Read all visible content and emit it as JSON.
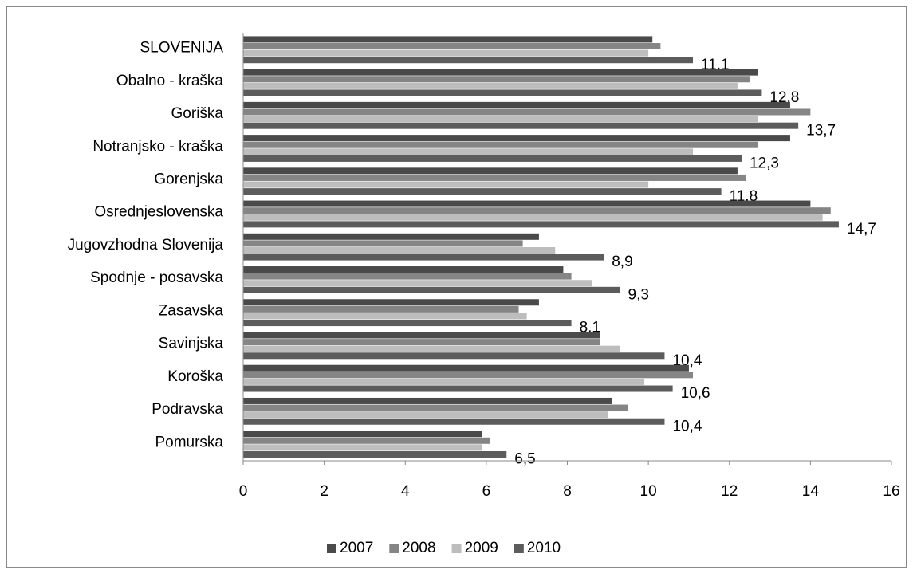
{
  "chart_data": {
    "type": "bar",
    "orientation": "horizontal",
    "categories": [
      "SLOVENIJA",
      "Obalno - kraška",
      "Goriška",
      "Notranjsko - kraška",
      "Gorenjska",
      "Osrednjeslovenska",
      "Jugovzhodna Slovenija",
      "Spodnje - posavska",
      "Zasavska",
      "Savinjska",
      "Koroška",
      "Podravska",
      "Pomurska"
    ],
    "series": [
      {
        "name": "2007",
        "color": "#4a4a4a",
        "values": [
          10.1,
          12.7,
          13.5,
          13.5,
          12.2,
          14.0,
          7.3,
          7.9,
          7.3,
          8.8,
          11.0,
          9.1,
          5.9
        ]
      },
      {
        "name": "2008",
        "color": "#858585",
        "values": [
          10.3,
          12.5,
          14.0,
          12.7,
          12.4,
          14.5,
          6.9,
          8.1,
          6.8,
          8.8,
          11.1,
          9.5,
          6.1
        ]
      },
      {
        "name": "2009",
        "color": "#bdbdbd",
        "values": [
          10.0,
          12.2,
          12.7,
          11.1,
          10.0,
          14.3,
          7.7,
          8.6,
          7.0,
          9.3,
          9.9,
          9.0,
          5.9
        ]
      },
      {
        "name": "2010",
        "color": "#5c5c5c",
        "values": [
          11.1,
          12.8,
          13.7,
          12.3,
          11.8,
          14.7,
          8.9,
          9.3,
          8.1,
          10.4,
          10.6,
          10.4,
          6.5
        ],
        "value_labels": [
          "11,1",
          "12,8",
          "13,7",
          "12,3",
          "11,8",
          "14,7",
          "8,9",
          "9,3",
          "8,1",
          "10,4",
          "10,6",
          "10,4",
          "6,5"
        ]
      }
    ],
    "xlim": [
      0,
      16
    ],
    "xticks": [
      0,
      2,
      4,
      6,
      8,
      10,
      12,
      14,
      16
    ],
    "legend": "bottom"
  }
}
